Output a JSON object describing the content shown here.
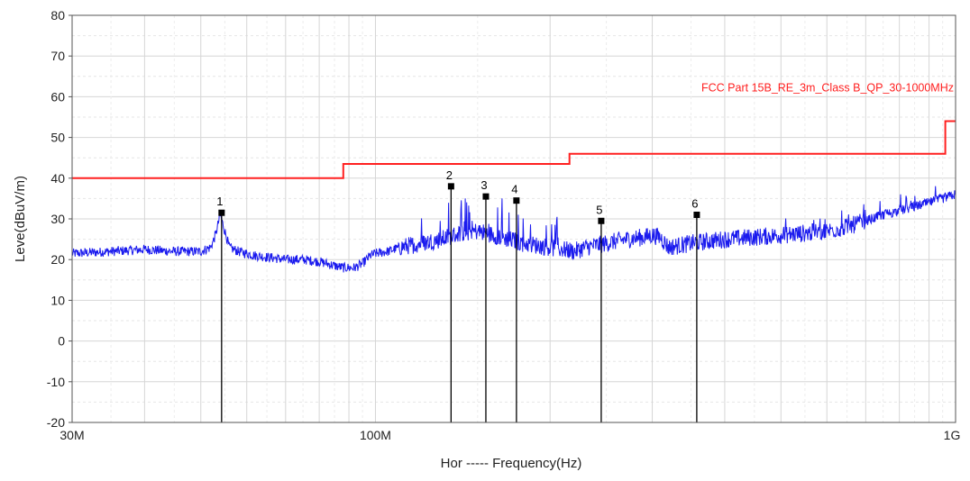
{
  "chart_data": {
    "type": "line",
    "title": "",
    "xlabel": "Hor ----- Frequency(Hz)",
    "ylabel": "Leve(dBuV/m)",
    "x_scale": "log",
    "x_unit": "MHz",
    "xlim": [
      30,
      1000
    ],
    "ylim": [
      -20,
      80
    ],
    "y_ticks": [
      "80",
      "70",
      "60",
      "50",
      "40",
      "30",
      "20",
      "10",
      "0",
      "-10",
      "-20"
    ],
    "x_tick_labels": [
      {
        "x": 30,
        "label": "30M"
      },
      {
        "x": 100,
        "label": "100M"
      },
      {
        "x": 1000,
        "label": "1G"
      }
    ],
    "grid": true,
    "limit_line": {
      "name": "FCC Part 15B_RE_3m_Class B_QP_30-1000MHz",
      "color": "#ff2020",
      "segments": [
        {
          "from": 30,
          "to": 88,
          "level": 40
        },
        {
          "from": 88,
          "to": 216,
          "level": 43.5
        },
        {
          "from": 216,
          "to": 960,
          "level": 46
        },
        {
          "from": 960,
          "to": 1000,
          "level": 54
        }
      ]
    },
    "series": [
      {
        "color": "#1a1aee",
        "x": [
          30,
          35,
          40,
          45,
          50,
          52,
          53,
          54,
          55,
          56,
          58,
          62,
          66,
          70,
          75,
          80,
          85,
          88,
          92,
          95,
          98,
          100,
          105,
          110,
          120,
          130,
          140,
          150,
          160,
          170,
          180,
          190,
          200,
          210,
          220,
          230,
          250,
          270,
          290,
          300,
          310,
          320,
          350,
          400,
          450,
          500,
          550,
          600,
          650,
          700,
          750,
          800,
          850,
          900,
          950,
          1000
        ],
        "y": [
          21.5,
          22,
          22.5,
          22,
          22,
          23,
          26,
          31,
          27,
          23,
          22,
          21,
          20.5,
          20,
          20,
          19.5,
          18.5,
          18,
          18,
          19,
          21,
          21.5,
          22,
          23,
          24,
          25,
          26.5,
          27,
          26,
          25,
          24,
          23.5,
          23,
          22.5,
          22,
          23,
          24,
          25,
          25.5,
          26,
          25.5,
          23,
          24,
          25,
          25.5,
          26,
          26.5,
          27,
          28,
          29.5,
          31,
          32,
          33,
          34,
          35,
          36
        ]
      }
    ],
    "markers": [
      {
        "label": "1",
        "x": 54.3,
        "y": 31.5
      },
      {
        "label": "2",
        "x": 135.0,
        "y": 38.0
      },
      {
        "label": "3",
        "x": 155.0,
        "y": 35.5
      },
      {
        "label": "4",
        "x": 175.0,
        "y": 34.5
      },
      {
        "label": "5",
        "x": 245.0,
        "y": 29.5
      },
      {
        "label": "6",
        "x": 358.0,
        "y": 31.0
      }
    ]
  }
}
